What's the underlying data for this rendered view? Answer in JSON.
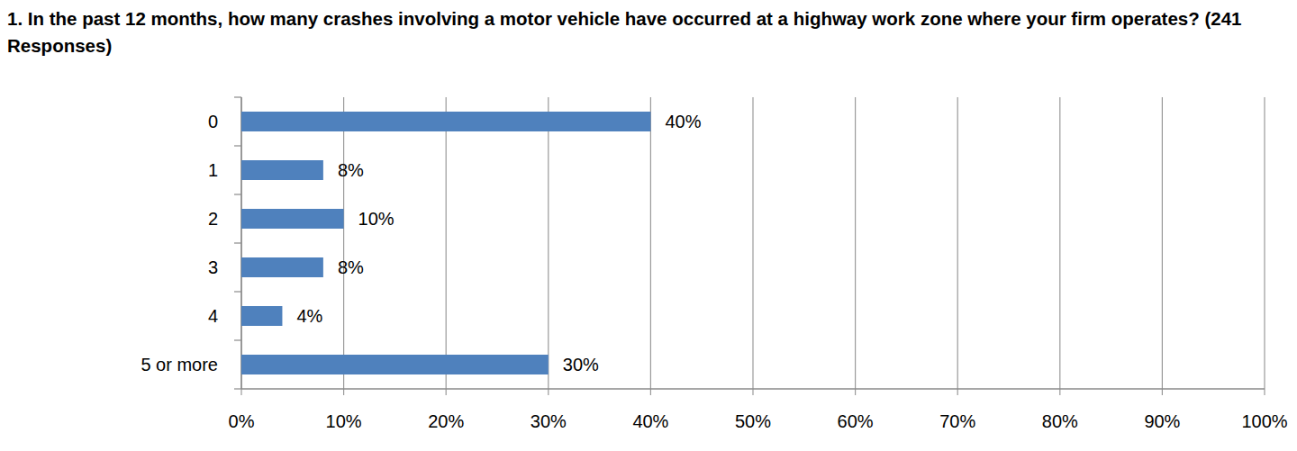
{
  "chart_data": {
    "type": "bar",
    "orientation": "horizontal",
    "title": "1. In the past 12 months, how many crashes involving a motor vehicle have occurred at a highway work zone where your firm operates? (241 Responses)",
    "categories": [
      "0",
      "1",
      "2",
      "3",
      "4",
      "5 or more"
    ],
    "values": [
      40,
      8,
      10,
      8,
      4,
      30
    ],
    "value_labels": [
      "40%",
      "8%",
      "10%",
      "8%",
      "4%",
      "30%"
    ],
    "color": "#4f81bd",
    "xlim": [
      0,
      100
    ],
    "xticks": [
      {
        "value": 0,
        "label": "0%"
      },
      {
        "value": 10,
        "label": "10%"
      },
      {
        "value": 20,
        "label": "20%"
      },
      {
        "value": 30,
        "label": "30%"
      },
      {
        "value": 40,
        "label": "40%"
      },
      {
        "value": 50,
        "label": "50%"
      },
      {
        "value": 60,
        "label": "60%"
      },
      {
        "value": 70,
        "label": "70%"
      },
      {
        "value": 80,
        "label": "80%"
      },
      {
        "value": 90,
        "label": "90%"
      },
      {
        "value": 100,
        "label": "100%"
      }
    ],
    "grid": true,
    "data_labels": true
  }
}
